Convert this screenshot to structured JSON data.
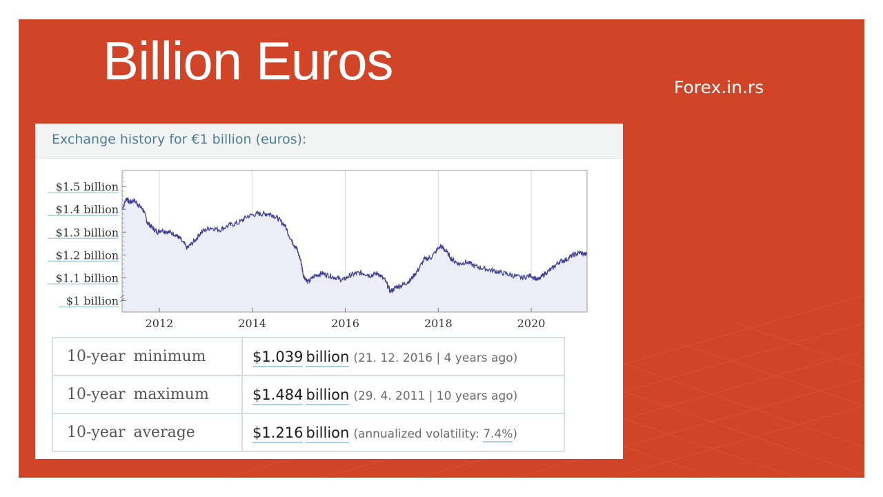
{
  "slide": {
    "title": "Billion Euros",
    "source": "Forex.in.rs",
    "accent": "#d04527"
  },
  "panel": {
    "header": "Exchange history for €1 billion (euros):"
  },
  "chart_data": {
    "type": "line",
    "title": "",
    "xlabel": "",
    "ylabel": "",
    "x_ticks": [
      "2012",
      "2014",
      "2016",
      "2018",
      "2020"
    ],
    "y_ticks": [
      "$1.5 billion",
      "$1.4 billion",
      "$1.3 billion",
      "$1.2 billion",
      "$1.1 billion",
      "$1 billion"
    ],
    "y_tick_values": [
      1.5,
      1.4,
      1.3,
      1.2,
      1.1,
      1.0
    ],
    "x_tick_values": [
      2012,
      2014,
      2016,
      2018,
      2020
    ],
    "xlim": [
      2011.2,
      2021.2
    ],
    "ylim": [
      0.95,
      1.57
    ],
    "grid": true,
    "line_color": "#3d3e94",
    "fill_color": "#ecedf7",
    "series": [
      {
        "x": [
          2011.2,
          2011.3,
          2011.35,
          2011.45,
          2011.55,
          2011.65,
          2011.75,
          2011.85,
          2011.95,
          2012.05,
          2012.2,
          2012.35,
          2012.45,
          2012.6,
          2012.75,
          2012.9,
          2013.1,
          2013.3,
          2013.5,
          2013.7,
          2013.9,
          2014.1,
          2014.25,
          2014.4,
          2014.55,
          2014.7,
          2014.85,
          2014.95,
          2015.05,
          2015.1,
          2015.2,
          2015.35,
          2015.5,
          2015.65,
          2015.8,
          2015.95,
          2016.1,
          2016.25,
          2016.4,
          2016.55,
          2016.7,
          2016.85,
          2016.97,
          2017.1,
          2017.25,
          2017.4,
          2017.55,
          2017.7,
          2017.85,
          2018.05,
          2018.15,
          2018.3,
          2018.45,
          2018.6,
          2018.8,
          2019.0,
          2019.2,
          2019.4,
          2019.6,
          2019.8,
          2020.0,
          2020.15,
          2020.3,
          2020.45,
          2020.6,
          2020.75,
          2020.9,
          2021.05,
          2021.2
        ],
        "values": [
          1.4,
          1.45,
          1.43,
          1.44,
          1.42,
          1.4,
          1.34,
          1.32,
          1.3,
          1.31,
          1.3,
          1.29,
          1.27,
          1.23,
          1.26,
          1.3,
          1.32,
          1.31,
          1.33,
          1.34,
          1.37,
          1.38,
          1.38,
          1.38,
          1.36,
          1.33,
          1.26,
          1.23,
          1.17,
          1.11,
          1.08,
          1.11,
          1.12,
          1.11,
          1.1,
          1.09,
          1.11,
          1.12,
          1.12,
          1.11,
          1.12,
          1.09,
          1.04,
          1.06,
          1.07,
          1.09,
          1.13,
          1.18,
          1.19,
          1.24,
          1.22,
          1.18,
          1.16,
          1.17,
          1.15,
          1.14,
          1.13,
          1.12,
          1.11,
          1.1,
          1.11,
          1.09,
          1.12,
          1.14,
          1.17,
          1.18,
          1.2,
          1.21,
          1.2
        ]
      }
    ]
  },
  "stats": [
    {
      "label_a": "10-year",
      "label_b": "minimum",
      "amount": "$1.039",
      "unit": "billion",
      "note": "(21. 12. 2016 | 4 years ago)"
    },
    {
      "label_a": "10-year",
      "label_b": "maximum",
      "amount": "$1.484",
      "unit": "billion",
      "note": "(29. 4. 2011 | 10 years ago)"
    },
    {
      "label_a": "10-year",
      "label_b": "average",
      "amount": "$1.216",
      "unit": "billion",
      "note_pre": "(annualized volatility: ",
      "note_link": "7.4%",
      "note_post": ")"
    }
  ]
}
